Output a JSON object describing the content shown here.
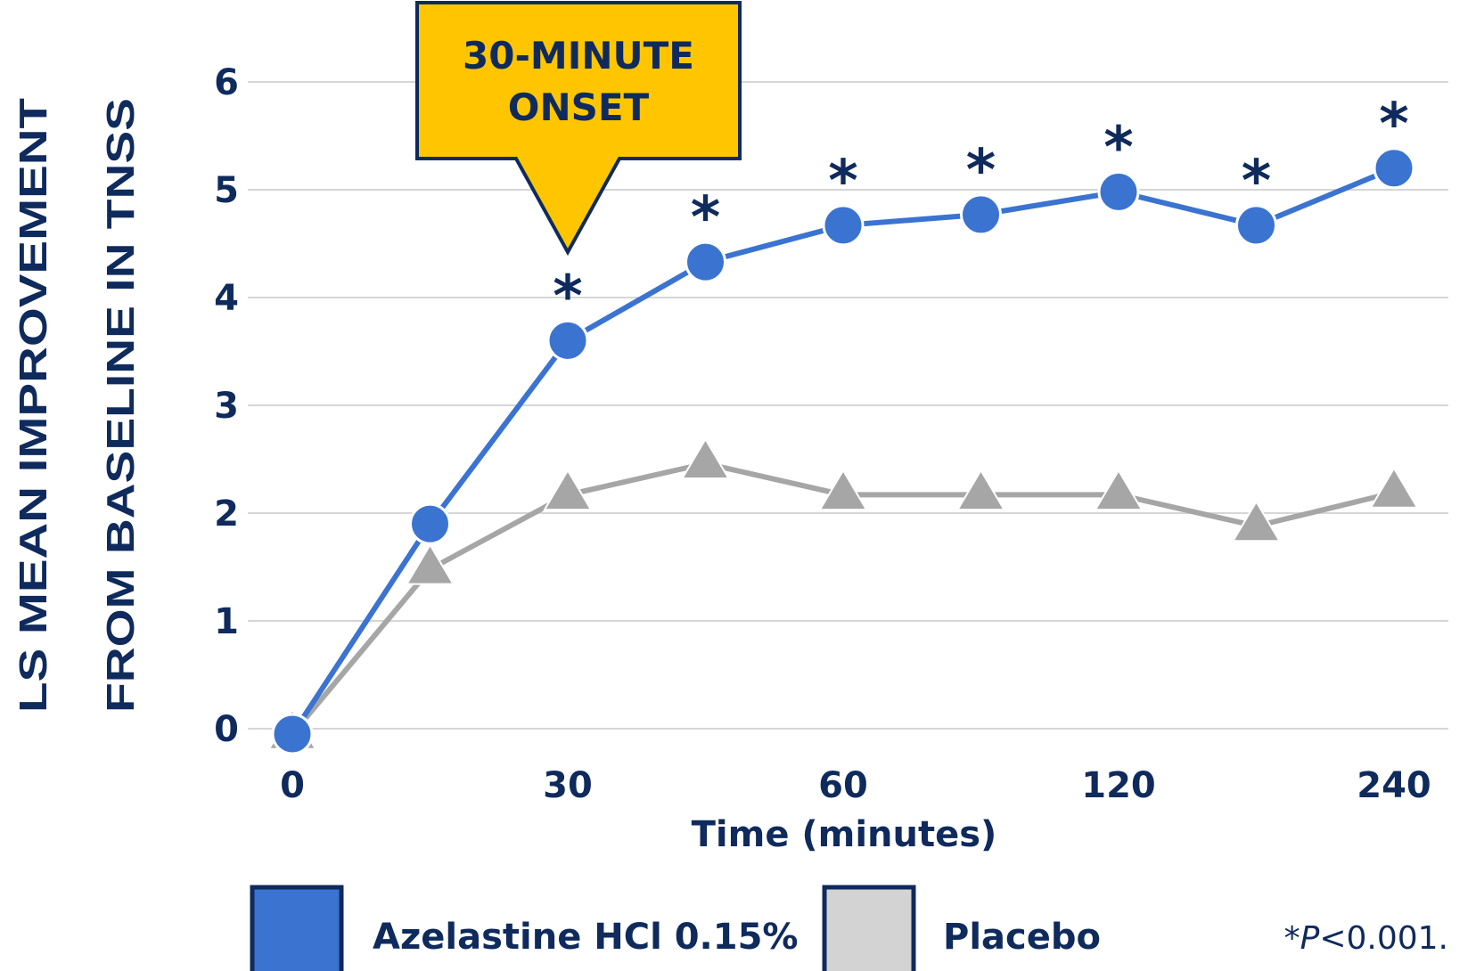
{
  "chart_data": {
    "type": "line",
    "xlabel": "Time (minutes)",
    "ylabel_lines": [
      "LS MEAN IMPROVEMENT",
      "FROM BASELINE IN TNSS"
    ],
    "x_tick_labels": [
      "0",
      "30",
      "60",
      "120",
      "240"
    ],
    "x_tick_index": [
      0,
      2,
      4,
      6,
      8
    ],
    "y_ticks": [
      "0",
      "1",
      "2",
      "3",
      "4",
      "5",
      "6"
    ],
    "ylim": [
      0,
      6
    ],
    "grid": true,
    "timepoint_count": 9,
    "series": [
      {
        "name": "Azelastine HCl 0.15%",
        "values": [
          -0.05,
          1.9,
          3.6,
          4.33,
          4.67,
          4.77,
          4.98,
          4.67,
          5.2
        ],
        "significant": [
          false,
          false,
          true,
          true,
          true,
          true,
          true,
          true,
          true
        ],
        "color": "#3b73d1",
        "marker": "circle"
      },
      {
        "name": "Placebo",
        "values": [
          -0.05,
          1.48,
          2.17,
          2.46,
          2.17,
          2.17,
          2.17,
          1.88,
          2.19
        ],
        "color": "#a6a6a6",
        "marker": "triangle"
      }
    ],
    "significance_marker": "*",
    "annotation": {
      "lines": [
        "30-MINUTE",
        "ONSET"
      ],
      "points_to_index": 2,
      "fill": "#ffc600"
    },
    "legend": {
      "placement": "bottom",
      "items": [
        {
          "label": "Azelastine HCl 0.15%",
          "color": "#3b73d1"
        },
        {
          "label": "Placebo",
          "color": "#d3d3d3"
        }
      ]
    },
    "footnote": "*P<0.001."
  }
}
